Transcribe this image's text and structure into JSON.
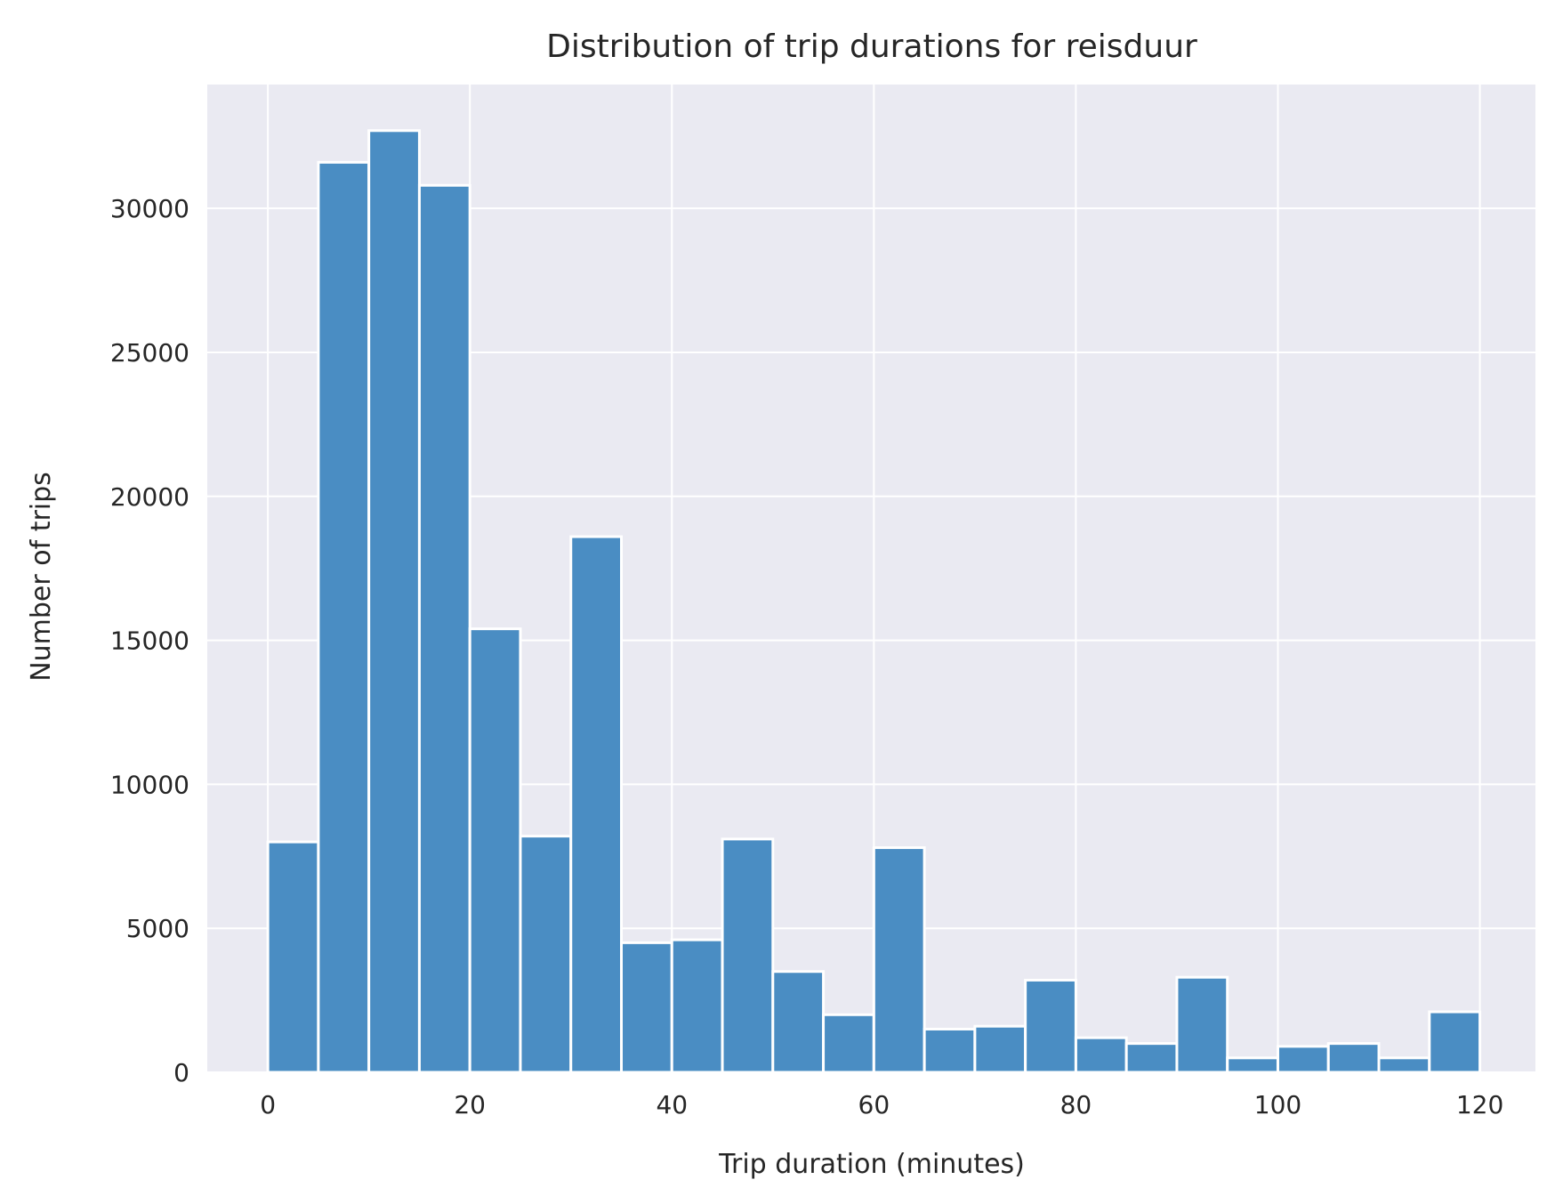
{
  "chart_data": {
    "type": "bar",
    "title": "Distribution of trip durations for reisduur",
    "xlabel": "Trip duration (minutes)",
    "ylabel": "Number of trips",
    "bin_width": 5,
    "bins": [
      {
        "x0": 0,
        "x1": 5,
        "count": 8000
      },
      {
        "x0": 5,
        "x1": 10,
        "count": 31600
      },
      {
        "x0": 10,
        "x1": 15,
        "count": 32700
      },
      {
        "x0": 15,
        "x1": 20,
        "count": 30800
      },
      {
        "x0": 20,
        "x1": 25,
        "count": 15400
      },
      {
        "x0": 25,
        "x1": 30,
        "count": 8200
      },
      {
        "x0": 30,
        "x1": 35,
        "count": 18600
      },
      {
        "x0": 35,
        "x1": 40,
        "count": 4500
      },
      {
        "x0": 40,
        "x1": 45,
        "count": 4600
      },
      {
        "x0": 45,
        "x1": 50,
        "count": 8100
      },
      {
        "x0": 50,
        "x1": 55,
        "count": 3500
      },
      {
        "x0": 55,
        "x1": 60,
        "count": 2000
      },
      {
        "x0": 60,
        "x1": 65,
        "count": 7800
      },
      {
        "x0": 65,
        "x1": 70,
        "count": 1500
      },
      {
        "x0": 70,
        "x1": 75,
        "count": 1600
      },
      {
        "x0": 75,
        "x1": 80,
        "count": 3200
      },
      {
        "x0": 80,
        "x1": 85,
        "count": 1200
      },
      {
        "x0": 85,
        "x1": 90,
        "count": 1000
      },
      {
        "x0": 90,
        "x1": 95,
        "count": 3300
      },
      {
        "x0": 95,
        "x1": 100,
        "count": 500
      },
      {
        "x0": 100,
        "x1": 105,
        "count": 900
      },
      {
        "x0": 105,
        "x1": 110,
        "count": 1000
      },
      {
        "x0": 110,
        "x1": 115,
        "count": 500
      },
      {
        "x0": 115,
        "x1": 120,
        "count": 2100
      }
    ],
    "xlim": [
      -6,
      125.5
    ],
    "ylim": [
      0,
      34300
    ],
    "xticks": [
      0,
      20,
      40,
      60,
      80,
      100,
      120
    ],
    "yticks": [
      0,
      5000,
      10000,
      15000,
      20000,
      25000,
      30000
    ],
    "grid": true,
    "colors": {
      "bar": "#4a8dc3",
      "plot_background": "#eaeaf2",
      "grid": "#ffffff"
    }
  }
}
